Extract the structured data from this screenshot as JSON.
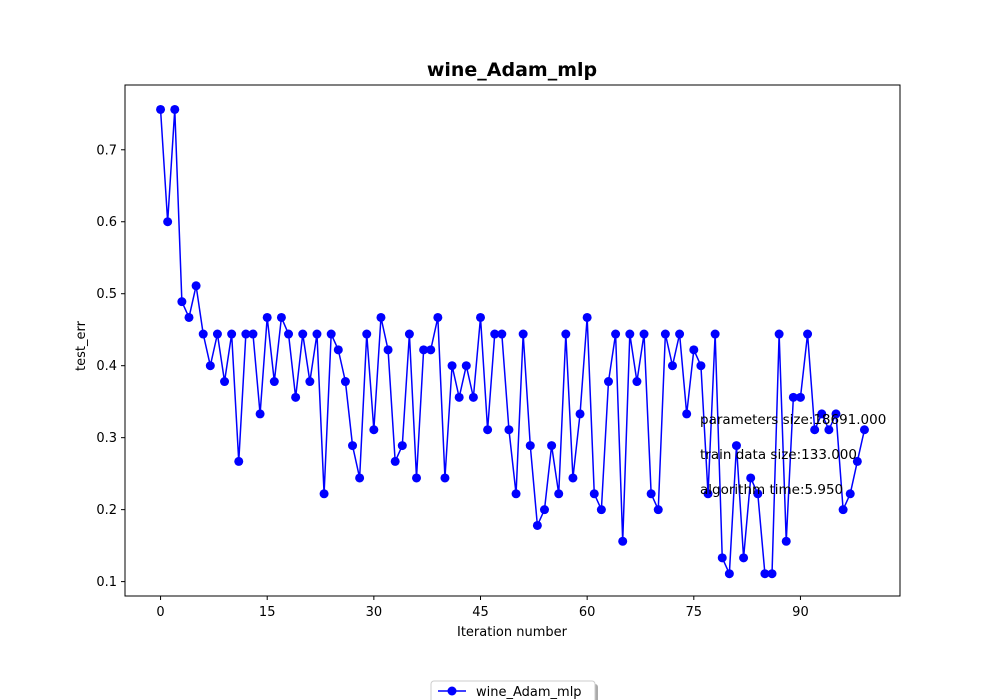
{
  "chart_data": {
    "type": "line",
    "title": "wine_Adam_mlp",
    "xlabel": "Iteration number",
    "ylabel": "test_err",
    "xlim": [
      -5,
      104
    ],
    "ylim": [
      0.08,
      0.79
    ],
    "xticks": [
      0,
      15,
      30,
      45,
      60,
      75,
      90
    ],
    "yticks": [
      0.1,
      0.2,
      0.3,
      0.4,
      0.5,
      0.6,
      0.7
    ],
    "grid": false,
    "legend": "bottom-center",
    "colors": {
      "series": "#0000ff",
      "axes": "#000000",
      "background": "#ffffff"
    },
    "series": [
      {
        "name": "wine_Adam_mlp",
        "marker": "circle",
        "x": [
          0,
          1,
          2,
          3,
          4,
          5,
          6,
          7,
          8,
          9,
          10,
          11,
          12,
          13,
          14,
          15,
          16,
          17,
          18,
          19,
          20,
          21,
          22,
          23,
          24,
          25,
          26,
          27,
          28,
          29,
          30,
          31,
          32,
          33,
          34,
          35,
          36,
          37,
          38,
          39,
          40,
          41,
          42,
          43,
          44,
          45,
          46,
          47,
          48,
          49,
          50,
          51,
          52,
          53,
          54,
          55,
          56,
          57,
          58,
          59,
          60,
          61,
          62,
          63,
          64,
          65,
          66,
          67,
          68,
          69,
          70,
          71,
          72,
          73,
          74,
          75,
          76,
          77,
          78,
          79,
          80,
          81,
          82,
          83,
          84,
          85,
          86,
          87,
          88,
          89,
          90,
          91,
          92,
          93,
          94,
          95,
          96,
          97,
          98,
          99
        ],
        "values": [
          0.756,
          0.6,
          0.756,
          0.489,
          0.467,
          0.511,
          0.444,
          0.4,
          0.444,
          0.378,
          0.444,
          0.267,
          0.444,
          0.444,
          0.333,
          0.467,
          0.378,
          0.467,
          0.444,
          0.356,
          0.444,
          0.378,
          0.444,
          0.222,
          0.444,
          0.422,
          0.378,
          0.289,
          0.244,
          0.444,
          0.311,
          0.467,
          0.422,
          0.267,
          0.289,
          0.444,
          0.244,
          0.422,
          0.422,
          0.467,
          0.244,
          0.4,
          0.356,
          0.4,
          0.356,
          0.467,
          0.311,
          0.444,
          0.444,
          0.311,
          0.222,
          0.444,
          0.289,
          0.178,
          0.2,
          0.289,
          0.222,
          0.444,
          0.244,
          0.333,
          0.467,
          0.222,
          0.2,
          0.378,
          0.444,
          0.156,
          0.444,
          0.378,
          0.444,
          0.222,
          0.2,
          0.444,
          0.4,
          0.444,
          0.333,
          0.422,
          0.4,
          0.222,
          0.444,
          0.133,
          0.111,
          0.289,
          0.133,
          0.244,
          0.222,
          0.111,
          0.111,
          0.444,
          0.156,
          0.356,
          0.356,
          0.444,
          0.311,
          0.333,
          0.311,
          0.333,
          0.2,
          0.222,
          0.267,
          0.311
        ]
      }
    ],
    "annotations": [
      "parameters size:18691.000",
      "train data size:133.000",
      "algorithm time:5.950"
    ]
  }
}
